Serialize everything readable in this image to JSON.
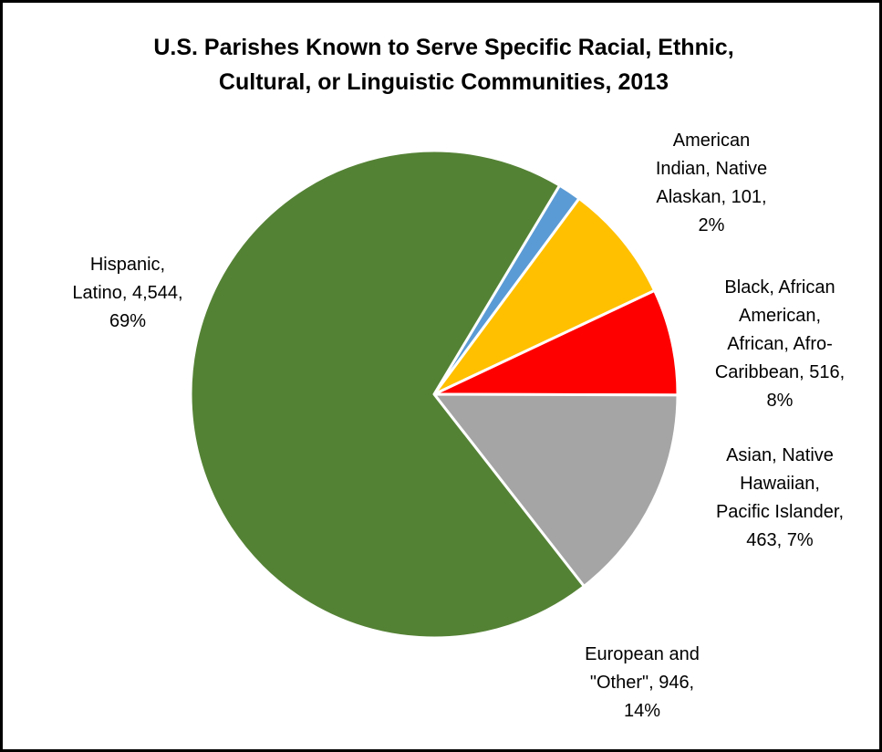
{
  "chart_data": {
    "type": "pie",
    "title": [
      "U.S. Parishes Known to Serve Specific Racial, Ethnic,",
      "Cultural, or Linguistic Communities, 2013"
    ],
    "slices": [
      {
        "name": "American Indian, Native Alaskan",
        "value": 101,
        "percent": "2%",
        "color": "#5B9BD5",
        "label": "American\nIndian, Native\nAlaskan, 101,\n2%"
      },
      {
        "name": "Black, African American, African, Afro-Caribbean",
        "value": 516,
        "percent": "8%",
        "color": "#FFC000",
        "label": "Black, African\nAmerican,\nAfrican, Afro-\nCaribbean, 516,\n8%"
      },
      {
        "name": "Asian, Native Hawaiian, Pacific Islander",
        "value": 463,
        "percent": "7%",
        "color": "#FF0000",
        "label": "Asian, Native\nHawaiian,\nPacific Islander,\n463, 7%"
      },
      {
        "name": "European and \"Other\"",
        "value": 946,
        "percent": "14%",
        "color": "#A5A5A5",
        "label": "European and\n\"Other\", 946,\n14%"
      },
      {
        "name": "Hispanic, Latino",
        "value": 4544,
        "percent": "69%",
        "color": "#548235",
        "label": "Hispanic,\nLatino, 4,544,\n69%"
      }
    ],
    "start_angle_deg": 59,
    "direction": "clockwise",
    "legend": "none",
    "slice_border_color": "#FFFFFF"
  }
}
